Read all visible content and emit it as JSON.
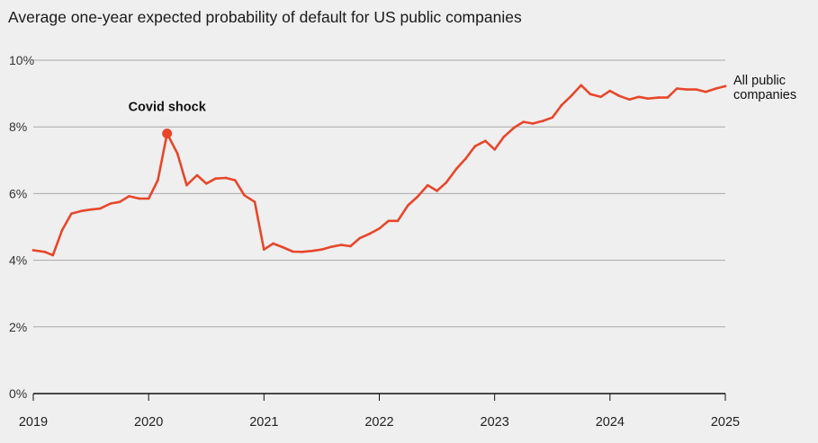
{
  "chart_data": {
    "type": "line",
    "title": "Average one-year expected probability of default for US public companies",
    "xlabel": "",
    "ylabel": "",
    "ylim": [
      0,
      10
    ],
    "xlim": [
      2019,
      2025
    ],
    "y_ticks": [
      "0%",
      "2%",
      "4%",
      "6%",
      "8%",
      "10%"
    ],
    "y_tick_values": [
      0,
      2,
      4,
      6,
      8,
      10
    ],
    "x_ticks": [
      "2019",
      "2020",
      "2021",
      "2022",
      "2023",
      "2024",
      "2025"
    ],
    "x_tick_values": [
      2019,
      2020,
      2021,
      2022,
      2023,
      2024,
      2025
    ],
    "grid": true,
    "colors": {
      "line": "#e8472a",
      "grid": "#a9a9a9",
      "axis": "#111111",
      "background": "#efefef"
    },
    "series": [
      {
        "name": "All public companies",
        "label_lines": [
          "All public",
          "companies"
        ],
        "x": [
          2019.0,
          2019.1,
          2019.17,
          2019.25,
          2019.33,
          2019.42,
          2019.5,
          2019.58,
          2019.67,
          2019.75,
          2019.83,
          2019.92,
          2020.0,
          2020.08,
          2020.16,
          2020.25,
          2020.33,
          2020.42,
          2020.5,
          2020.58,
          2020.67,
          2020.75,
          2020.83,
          2020.92,
          2021.0,
          2021.08,
          2021.17,
          2021.25,
          2021.33,
          2021.42,
          2021.5,
          2021.58,
          2021.67,
          2021.75,
          2021.83,
          2021.92,
          2022.0,
          2022.08,
          2022.16,
          2022.25,
          2022.33,
          2022.42,
          2022.5,
          2022.58,
          2022.67,
          2022.75,
          2022.83,
          2022.92,
          2023.0,
          2023.08,
          2023.17,
          2023.25,
          2023.33,
          2023.42,
          2023.5,
          2023.58,
          2023.67,
          2023.75,
          2023.83,
          2023.92,
          2024.0,
          2024.08,
          2024.17,
          2024.25,
          2024.33,
          2024.42,
          2024.5,
          2024.58,
          2024.67,
          2024.75,
          2024.83,
          2024.92,
          2025.0
        ],
        "values": [
          4.3,
          4.25,
          4.15,
          4.9,
          5.4,
          5.48,
          5.52,
          5.55,
          5.7,
          5.75,
          5.92,
          5.85,
          5.85,
          6.4,
          7.8,
          7.2,
          6.25,
          6.55,
          6.3,
          6.45,
          6.47,
          6.4,
          5.95,
          5.75,
          4.32,
          4.5,
          4.38,
          4.26,
          4.25,
          4.28,
          4.32,
          4.4,
          4.46,
          4.42,
          4.66,
          4.8,
          4.95,
          5.18,
          5.18,
          5.65,
          5.9,
          6.25,
          6.08,
          6.33,
          6.75,
          7.05,
          7.42,
          7.58,
          7.32,
          7.7,
          7.98,
          8.15,
          8.1,
          8.18,
          8.28,
          8.65,
          8.95,
          9.25,
          8.98,
          8.9,
          9.08,
          8.93,
          8.82,
          8.9,
          8.85,
          8.88,
          8.88,
          9.15,
          9.12,
          9.12,
          9.05,
          9.15,
          9.22
        ]
      }
    ],
    "annotations": [
      {
        "text": "Covid shock",
        "x": 2020.16,
        "y": 7.8
      }
    ]
  }
}
